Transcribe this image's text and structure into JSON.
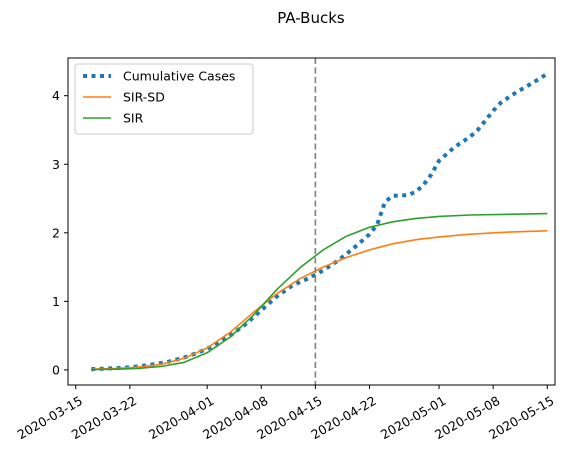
{
  "chart_data": {
    "type": "line",
    "title": "PA-Bucks",
    "xlabel": "",
    "ylabel": "",
    "ylim": [
      -0.22,
      4.55
    ],
    "xlim": [
      "2020-03-14",
      "2020-05-16"
    ],
    "x_ticks": [
      "2020-03-15",
      "2020-03-22",
      "2020-04-01",
      "2020-04-08",
      "2020-04-15",
      "2020-04-22",
      "2020-05-01",
      "2020-05-08",
      "2020-05-15"
    ],
    "y_ticks": [
      0,
      1,
      2,
      3,
      4
    ],
    "vline": {
      "x": "2020-04-15",
      "style": "dashed",
      "color": "#7f7f7f"
    },
    "grid": false,
    "legend_position": "upper-left",
    "series": [
      {
        "name": "Cumulative Cases",
        "style": "dotted",
        "color": "#1f77b4",
        "x": [
          "2020-03-17",
          "2020-03-19",
          "2020-03-21",
          "2020-03-23",
          "2020-03-25",
          "2020-03-27",
          "2020-03-29",
          "2020-03-31",
          "2020-04-02",
          "2020-04-04",
          "2020-04-06",
          "2020-04-08",
          "2020-04-10",
          "2020-04-12",
          "2020-04-14",
          "2020-04-16",
          "2020-04-18",
          "2020-04-20",
          "2020-04-22",
          "2020-04-23",
          "2020-04-24",
          "2020-04-25",
          "2020-04-27",
          "2020-04-28",
          "2020-04-29",
          "2020-04-30",
          "2020-05-01",
          "2020-05-03",
          "2020-05-05",
          "2020-05-06",
          "2020-05-08",
          "2020-05-09",
          "2020-05-11",
          "2020-05-13",
          "2020-05-15"
        ],
        "y": [
          0.01,
          0.02,
          0.03,
          0.05,
          0.08,
          0.12,
          0.18,
          0.26,
          0.36,
          0.5,
          0.67,
          0.87,
          1.07,
          1.23,
          1.33,
          1.45,
          1.6,
          1.78,
          1.98,
          2.12,
          2.45,
          2.54,
          2.55,
          2.6,
          2.7,
          2.85,
          3.05,
          3.25,
          3.4,
          3.5,
          3.78,
          3.9,
          4.05,
          4.18,
          4.32
        ]
      },
      {
        "name": "SIR-SD",
        "style": "solid",
        "color": "#ff7f0e",
        "x": [
          "2020-03-17",
          "2020-03-20",
          "2020-03-23",
          "2020-03-26",
          "2020-03-29",
          "2020-04-01",
          "2020-04-04",
          "2020-04-07",
          "2020-04-10",
          "2020-04-13",
          "2020-04-16",
          "2020-04-19",
          "2020-04-22",
          "2020-04-25",
          "2020-04-28",
          "2020-05-01",
          "2020-05-05",
          "2020-05-10",
          "2020-05-15"
        ],
        "y": [
          0.01,
          0.02,
          0.04,
          0.08,
          0.17,
          0.32,
          0.55,
          0.84,
          1.11,
          1.33,
          1.5,
          1.64,
          1.75,
          1.84,
          1.9,
          1.94,
          1.98,
          2.01,
          2.03
        ]
      },
      {
        "name": "SIR",
        "style": "solid",
        "color": "#2ca02c",
        "x": [
          "2020-03-17",
          "2020-03-20",
          "2020-03-23",
          "2020-03-26",
          "2020-03-29",
          "2020-04-01",
          "2020-04-04",
          "2020-04-07",
          "2020-04-10",
          "2020-04-13",
          "2020-04-16",
          "2020-04-19",
          "2020-04-22",
          "2020-04-25",
          "2020-04-28",
          "2020-05-01",
          "2020-05-05",
          "2020-05-10",
          "2020-05-15"
        ],
        "y": [
          0.005,
          0.01,
          0.02,
          0.05,
          0.11,
          0.25,
          0.48,
          0.8,
          1.17,
          1.49,
          1.75,
          1.95,
          2.08,
          2.16,
          2.21,
          2.24,
          2.26,
          2.27,
          2.28
        ]
      }
    ]
  }
}
